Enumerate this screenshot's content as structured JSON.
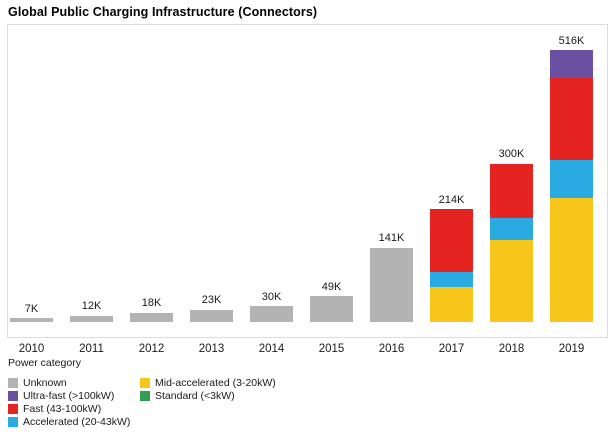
{
  "title": "Global Public Charging Infrastructure (Connectors)",
  "legend": {
    "header": "Power category",
    "items": [
      {
        "label": "Unknown",
        "color": "#b3b3b3",
        "slug": "unknown"
      },
      {
        "label": "Ultra-fast (>100kW)",
        "color": "#6b4fa1",
        "slug": "ultra-fast"
      },
      {
        "label": "Fast (43-100kW)",
        "color": "#e52421",
        "slug": "fast"
      },
      {
        "label": "Accelerated (20-43kW)",
        "color": "#29abe2",
        "slug": "accelerated"
      },
      {
        "label": "Mid-accelerated (3-20kW)",
        "color": "#f6c61a",
        "slug": "mid-accelerated"
      },
      {
        "label": "Standard (<3kW)",
        "color": "#2f9e4e",
        "slug": "standard"
      }
    ]
  },
  "chart_data": {
    "type": "bar",
    "stacked": true,
    "title": "Global Public Charging Infrastructure (Connectors)",
    "categories": [
      "2010",
      "2011",
      "2012",
      "2013",
      "2014",
      "2015",
      "2016",
      "2017",
      "2018",
      "2019"
    ],
    "totals": [
      7,
      12,
      18,
      23,
      30,
      49,
      141,
      214,
      300,
      516
    ],
    "total_labels": [
      "7K",
      "12K",
      "18K",
      "23K",
      "30K",
      "49K",
      "141K",
      "214K",
      "300K",
      "516K"
    ],
    "unit": "thousand connectors",
    "series": [
      {
        "name": "Unknown",
        "color": "#b3b3b3",
        "values": [
          7,
          12,
          18,
          23,
          30,
          49,
          141,
          0,
          0,
          0
        ]
      },
      {
        "name": "Mid-accelerated (3-20kW)",
        "color": "#f6c61a",
        "values": [
          0,
          0,
          0,
          0,
          0,
          0,
          0,
          67,
          156,
          236
        ]
      },
      {
        "name": "Accelerated (20-43kW)",
        "color": "#29abe2",
        "values": [
          0,
          0,
          0,
          0,
          0,
          0,
          0,
          27,
          41,
          72
        ]
      },
      {
        "name": "Fast (43-100kW)",
        "color": "#e52421",
        "values": [
          0,
          0,
          0,
          0,
          0,
          0,
          0,
          120,
          103,
          154
        ]
      },
      {
        "name": "Ultra-fast (>100kW)",
        "color": "#6b4fa1",
        "values": [
          0,
          0,
          0,
          0,
          0,
          0,
          0,
          0,
          0,
          54
        ]
      },
      {
        "name": "Standard (<3kW)",
        "color": "#2f9e4e",
        "values": [
          0,
          0,
          0,
          0,
          0,
          0,
          0,
          0,
          0,
          0
        ]
      }
    ],
    "xlabel": "",
    "ylabel": "",
    "ylim": [
      0,
      560
    ],
    "grid": false,
    "value_labels": "above bar totals",
    "legend_position": "bottom-left"
  }
}
